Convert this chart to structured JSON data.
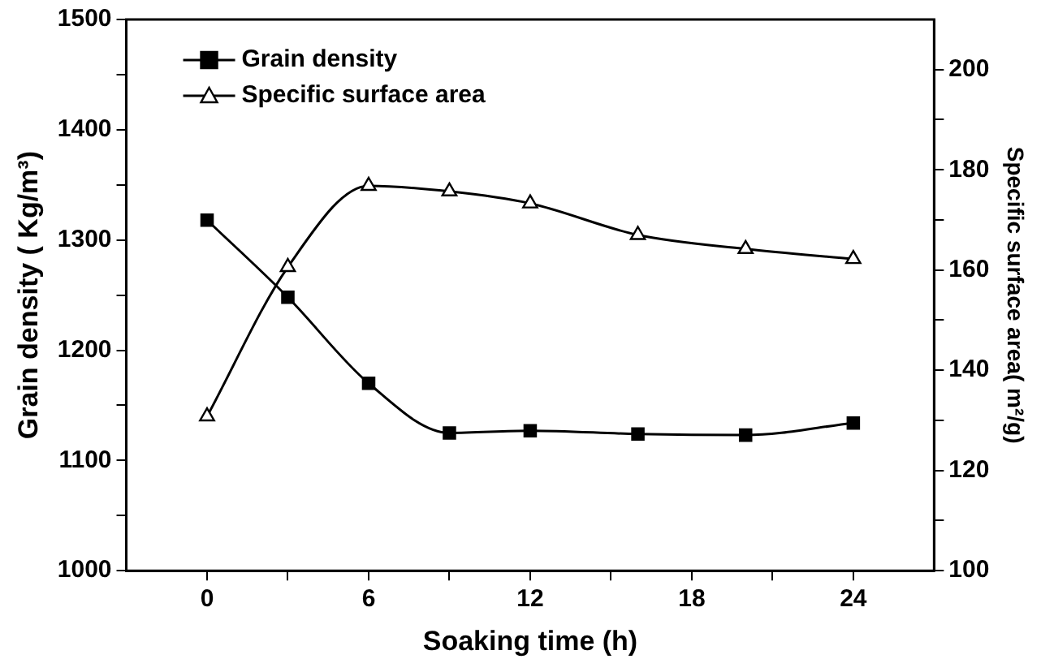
{
  "chart_data": {
    "type": "line",
    "xlabel": "Soaking time (h)",
    "ylabel": "Grain density ( Kg/m³)",
    "y2label": "Specific surface area( m²/g)",
    "x": [
      0,
      3,
      6,
      9,
      12,
      16,
      20,
      24
    ],
    "xlim": [
      -3,
      27
    ],
    "xticks": [
      0,
      {
        "value": 3,
        "label": null
      },
      6,
      {
        "value": 9,
        "label": null
      },
      12,
      {
        "value": 15,
        "label": null
      },
      18,
      {
        "value": 21,
        "label": null
      },
      24
    ],
    "ylim": [
      1000,
      1500
    ],
    "yticks": [
      1000,
      {
        "value": 1050,
        "label": null
      },
      1100,
      {
        "value": 1150,
        "label": null
      },
      1200,
      {
        "value": 1250,
        "label": null
      },
      1300,
      {
        "value": 1350,
        "label": null
      },
      1400,
      {
        "value": 1450,
        "label": null
      },
      1500
    ],
    "y2lim": [
      100,
      210
    ],
    "y2ticks": [
      100,
      {
        "value": 110,
        "label": null
      },
      120,
      {
        "value": 130,
        "label": null
      },
      140,
      {
        "value": 150,
        "label": null
      },
      160,
      {
        "value": 170,
        "label": null
      },
      180,
      {
        "value": 190,
        "label": null
      },
      200
    ],
    "series": [
      {
        "name": "Grain density",
        "color": "#000000",
        "marker": "square",
        "values": [
          1318,
          1248,
          1170,
          1125,
          1127,
          1124,
          1123,
          1134
        ]
      },
      {
        "name": "Specific surface area",
        "color": "#000000",
        "marker": "triangle",
        "axis": "y2",
        "values": [
          130.8,
          160.6,
          176.8,
          175.7,
          173.3,
          167,
          164.2,
          162.2
        ]
      }
    ],
    "grid": false,
    "legend": "top left",
    "line_style": "solid"
  }
}
